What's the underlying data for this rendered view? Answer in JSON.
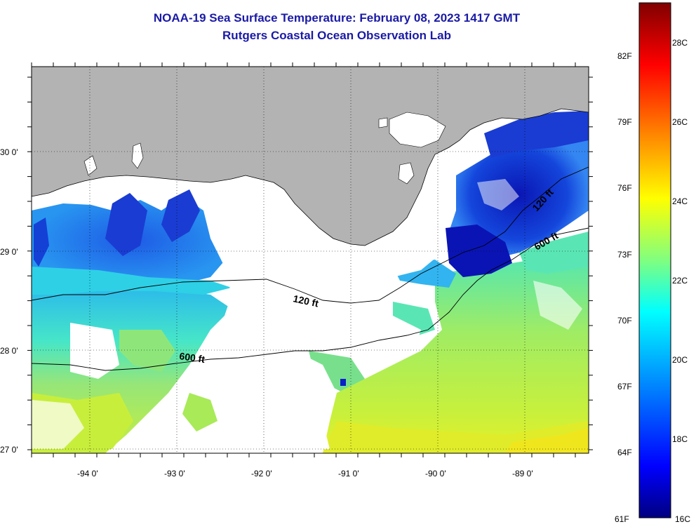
{
  "title": "NOAA-19 Sea Surface Temperature:  February 08, 2023 1417 GMT",
  "subtitle": "Rutgers Coastal Ocean Observation Lab",
  "map": {
    "lon_range": [
      -94.6,
      -88.2
    ],
    "lat_range": [
      26.95,
      30.85
    ],
    "lon_ticks": [
      "-94 0'",
      "-93 0'",
      "-92 0'",
      "-91 0'",
      "-90 0'",
      "-89 0'"
    ],
    "lat_ticks": [
      "30 0'",
      "29 0'",
      "28 0'",
      "27 0'"
    ],
    "isobaths": [
      {
        "label": "120 ft",
        "label2": "120 ft"
      },
      {
        "label": "600 ft",
        "label2": "600 ft"
      }
    ],
    "colors": {
      "land": "#b3b3b3",
      "cloud": "#ffffff",
      "sst_cool": "#0a1fc8",
      "sst_mid": "#1ec8f0",
      "sst_warm": "#b4f046",
      "sst_hot": "#f0e61e"
    }
  },
  "colorbar": {
    "fahrenheit_labels": [
      "82F",
      "79F",
      "76F",
      "73F",
      "70F",
      "67F",
      "64F",
      "61F"
    ],
    "celsius_labels": [
      "28C",
      "26C",
      "24C",
      "22C",
      "20C",
      "18C",
      "16C"
    ],
    "range_c": [
      16,
      29
    ],
    "colors": [
      "#000080",
      "#0000ff",
      "#0080ff",
      "#00ffff",
      "#80ff80",
      "#ffff00",
      "#ff8000",
      "#ff0000",
      "#800000"
    ]
  }
}
